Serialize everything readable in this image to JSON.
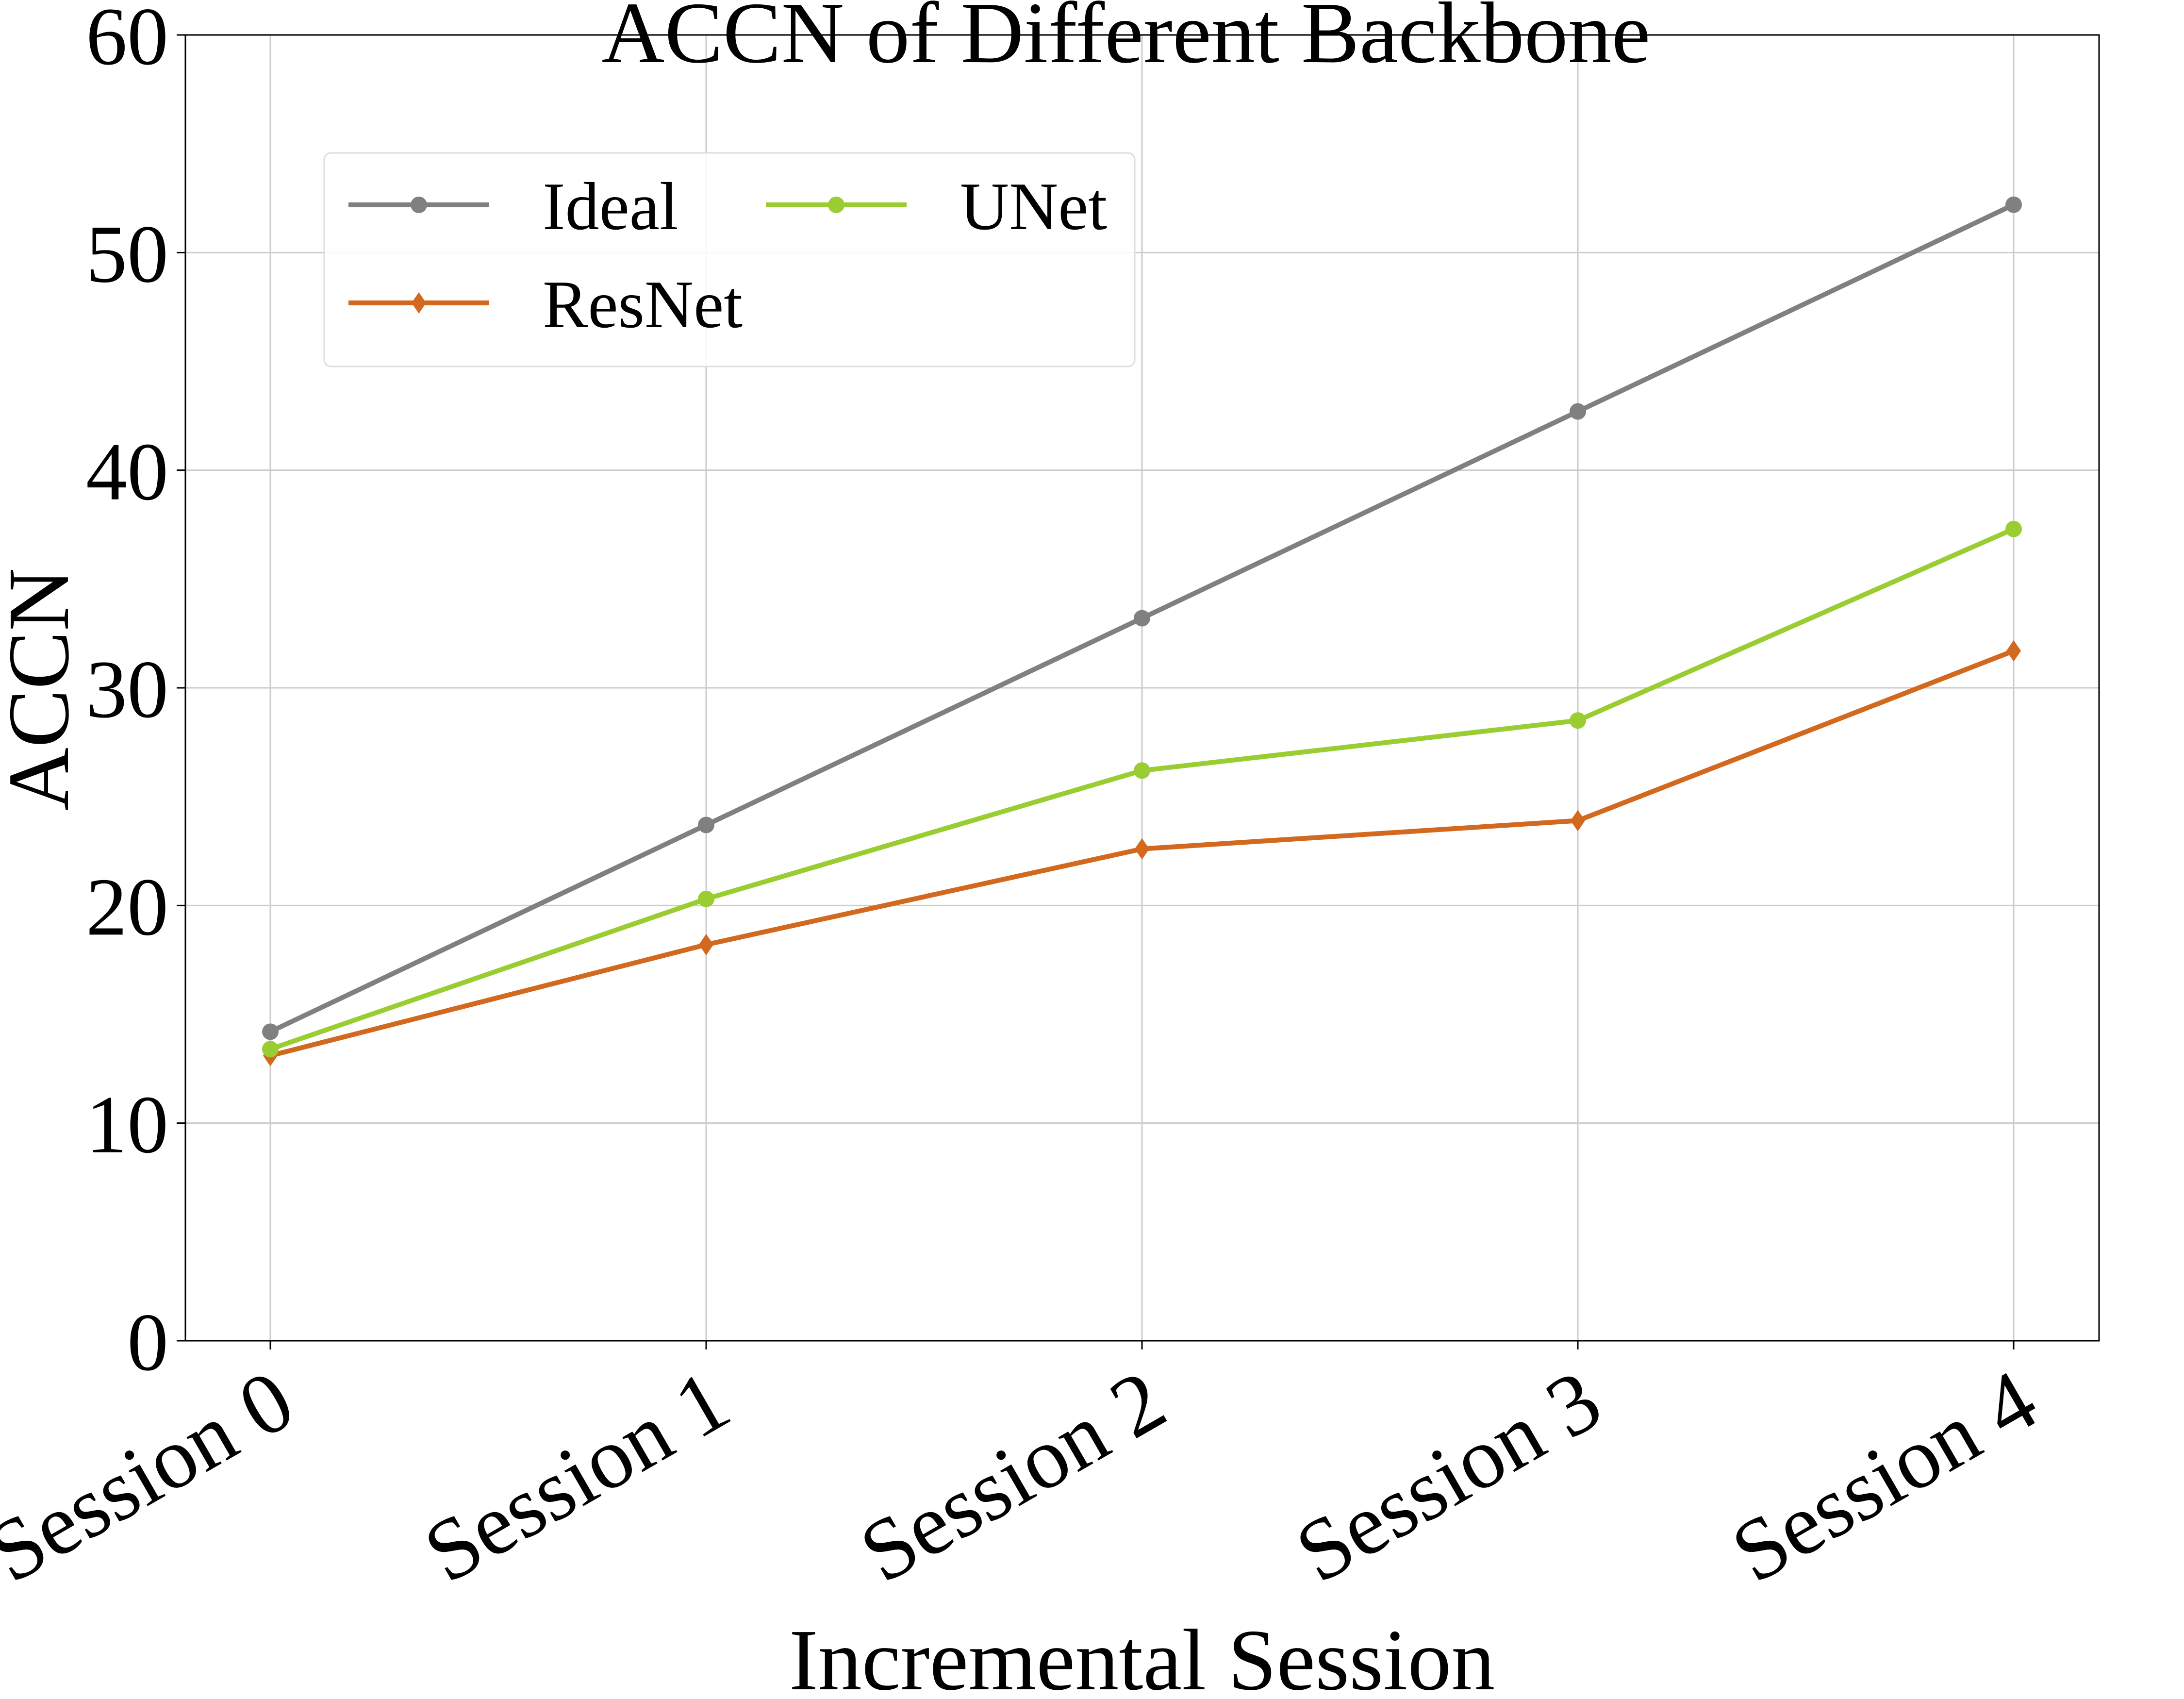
{
  "chart_data": {
    "type": "line",
    "title": "ACCN of Different Backbone",
    "xlabel": "Incremental Session",
    "ylabel": "ACCN",
    "categories": [
      "Session 0",
      "Session 1",
      "Session 2",
      "Session 3",
      "Session 4"
    ],
    "ylim": [
      0,
      60
    ],
    "yticks": [
      "0",
      "10",
      "20",
      "30",
      "40",
      "50",
      "60"
    ],
    "grid": true,
    "legend_position": "top-left",
    "series": [
      {
        "name": "Ideal",
        "color": "#808080",
        "marker": "circle",
        "values": [
          14.2,
          23.7,
          33.2,
          42.7,
          52.2
        ]
      },
      {
        "name": "ResNet",
        "color": "#d2691e",
        "marker": "diamond",
        "values": [
          13.1,
          18.2,
          22.6,
          23.9,
          31.7
        ]
      },
      {
        "name": "UNet",
        "color": "#9acd32",
        "marker": "circle",
        "values": [
          13.4,
          20.3,
          26.2,
          28.5,
          37.3
        ]
      }
    ]
  }
}
